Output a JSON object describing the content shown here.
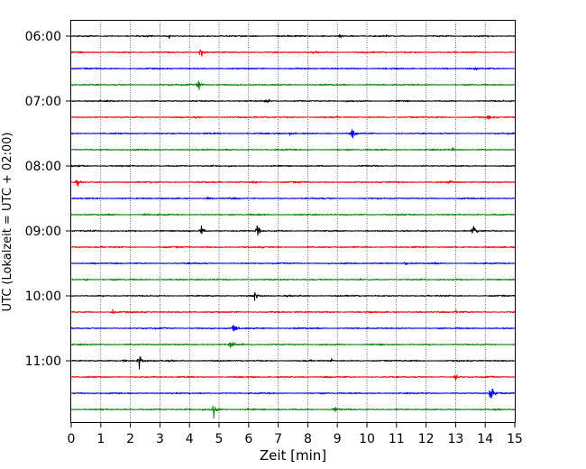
{
  "chart_data": {
    "type": "line",
    "title": "",
    "xlabel": "Zeit  [min]",
    "ylabel": "UTC (Lokalzeit = UTC + 02:00)",
    "xlim": [
      0,
      15
    ],
    "x_ticks": [
      "0",
      "1",
      "2",
      "3",
      "4",
      "5",
      "6",
      "7",
      "8",
      "9",
      "10",
      "11",
      "12",
      "13",
      "14",
      "15"
    ],
    "y_tick_labels": [
      "06:00",
      "07:00",
      "08:00",
      "09:00",
      "10:00",
      "11:00"
    ],
    "trace_colors": [
      "#000000",
      "#ff0000",
      "#0000ff",
      "#008000"
    ],
    "trace_interval_minutes": 15,
    "start_time": "06:00",
    "traces_count": 24,
    "grid_x": true,
    "events": [
      {
        "trace": 0,
        "t": 3.3,
        "amp": 0.6
      },
      {
        "trace": 0,
        "t": 9.1,
        "amp": 0.6
      },
      {
        "trace": 1,
        "t": 4.4,
        "amp": 2.5
      },
      {
        "trace": 2,
        "t": 13.7,
        "amp": 0.7
      },
      {
        "trace": 3,
        "t": 4.3,
        "amp": 2.2
      },
      {
        "trace": 4,
        "t": 6.6,
        "amp": 0.9
      },
      {
        "trace": 5,
        "t": 14.1,
        "amp": 1.0
      },
      {
        "trace": 6,
        "t": 7.4,
        "amp": 0.6
      },
      {
        "trace": 6,
        "t": 9.5,
        "amp": 1.4
      },
      {
        "trace": 7,
        "t": 12.9,
        "amp": 0.6
      },
      {
        "trace": 8,
        "t": 0.3,
        "amp": 0.3
      },
      {
        "trace": 9,
        "t": 0.2,
        "amp": 1.0
      },
      {
        "trace": 9,
        "t": 6.2,
        "amp": 0.6
      },
      {
        "trace": 9,
        "t": 12.8,
        "amp": 0.8
      },
      {
        "trace": 10,
        "t": 4.6,
        "amp": 0.5
      },
      {
        "trace": 11,
        "t": 2.5,
        "amp": 0.3
      },
      {
        "trace": 12,
        "t": 4.4,
        "amp": 1.6
      },
      {
        "trace": 12,
        "t": 6.3,
        "amp": 2.5
      },
      {
        "trace": 12,
        "t": 13.6,
        "amp": 1.6
      },
      {
        "trace": 14,
        "t": 11.3,
        "amp": 0.7
      },
      {
        "trace": 15,
        "t": 0.5,
        "amp": 0.4
      },
      {
        "trace": 16,
        "t": 6.2,
        "amp": 1.8
      },
      {
        "trace": 17,
        "t": 1.4,
        "amp": 0.6
      },
      {
        "trace": 17,
        "t": 13.0,
        "amp": 0.5
      },
      {
        "trace": 18,
        "t": 5.5,
        "amp": 2.2
      },
      {
        "trace": 19,
        "t": 5.4,
        "amp": 2.2
      },
      {
        "trace": 20,
        "t": 1.8,
        "amp": 0.6
      },
      {
        "trace": 20,
        "t": 2.3,
        "amp": 2.5
      },
      {
        "trace": 20,
        "t": 8.8,
        "amp": 0.5
      },
      {
        "trace": 21,
        "t": 13.0,
        "amp": 1.3
      },
      {
        "trace": 22,
        "t": 14.2,
        "amp": 3.0
      },
      {
        "trace": 23,
        "t": 4.8,
        "amp": 2.5
      },
      {
        "trace": 23,
        "t": 8.9,
        "amp": 0.9
      }
    ]
  }
}
